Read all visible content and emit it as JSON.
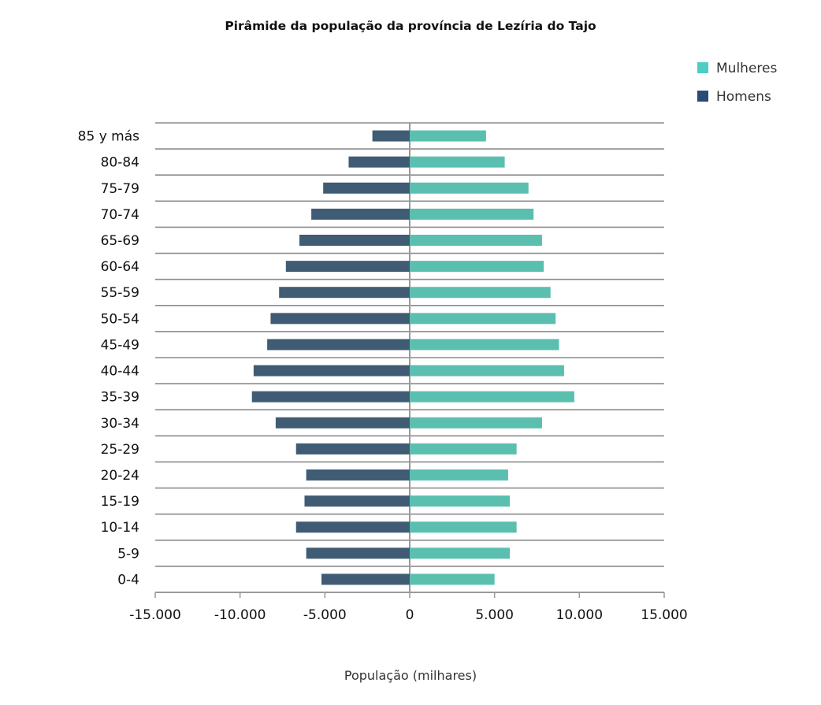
{
  "chart_data": {
    "type": "bar",
    "orientation": "horizontal",
    "title": "Pirâmide da população da província de Lezíria do Tajo",
    "xlabel": "População (milhares)",
    "ylabel": "",
    "xlim": [
      -15000,
      15000
    ],
    "xticks": [
      -15000,
      -10000,
      -5000,
      0,
      5000,
      10000,
      15000
    ],
    "xtick_labels": [
      "-15.000",
      "-10.000",
      "-5.000",
      "0",
      "5.000",
      "10.000",
      "15.000"
    ],
    "grid": true,
    "legend_position": "top-right",
    "categories": [
      "85 y más",
      "80-84",
      "75-79",
      "70-74",
      "65-69",
      "60-64",
      "55-59",
      "50-54",
      "45-49",
      "40-44",
      "35-39",
      "30-34",
      "25-29",
      "20-24",
      "15-19",
      "10-14",
      "5-9",
      "0-4"
    ],
    "series": [
      {
        "name": "Mulheres",
        "color": "#5bbfb0",
        "legend_color": "#4ecdc4",
        "values": [
          4500,
          5600,
          7000,
          7300,
          7800,
          7900,
          8300,
          8600,
          8800,
          9100,
          9700,
          7800,
          6300,
          5800,
          5900,
          6300,
          5900,
          5000
        ]
      },
      {
        "name": "Homens",
        "color": "#3f5c74",
        "legend_color": "#2b4a78",
        "values": [
          -2200,
          -3600,
          -5100,
          -5800,
          -6500,
          -7300,
          -7700,
          -8200,
          -8400,
          -9200,
          -9300,
          -7900,
          -6700,
          -6100,
          -6200,
          -6700,
          -6100,
          -5200
        ]
      }
    ]
  }
}
